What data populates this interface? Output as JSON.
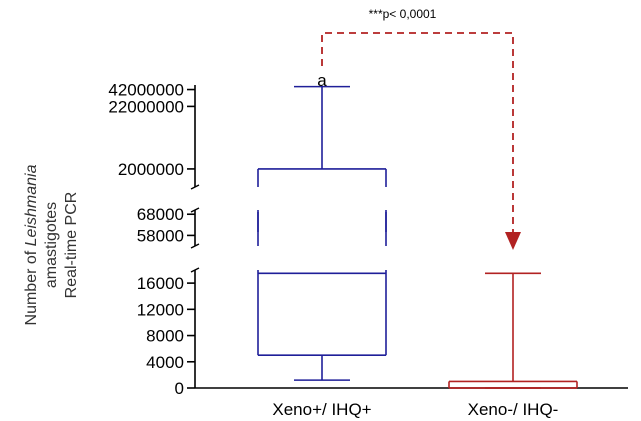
{
  "chart_data": {
    "type": "boxplot",
    "title": "",
    "ylabel_lines": [
      {
        "prefix": "Number of ",
        "italic": "Leishmania"
      },
      {
        "prefix": "amastigotes",
        "italic": ""
      },
      {
        "prefix": "Real-time PCR",
        "italic": ""
      }
    ],
    "xlabel": "",
    "categories": [
      "Xeno+/ IHQ+",
      "Xeno-/ IHQ-"
    ],
    "y_axis_segments": [
      {
        "range": [
          0,
          18000
        ],
        "ticks": [
          0,
          4000,
          8000,
          12000,
          16000
        ],
        "tick_labels": [
          "0",
          "4000",
          "8000",
          "12000",
          "16000"
        ]
      },
      {
        "range": [
          53000,
          70000
        ],
        "ticks": [
          58000,
          68000
        ],
        "tick_labels": [
          "58000",
          "68000"
        ]
      },
      {
        "range": [
          1000000,
          50000000
        ],
        "ticks": [
          2000000,
          22000000,
          42000000
        ],
        "tick_labels": [
          "2000000",
          "22000000",
          "42000000"
        ]
      }
    ],
    "boxes": [
      {
        "name": "Xeno+/ IHQ+",
        "color": "#1f1f99",
        "whisker_low": 1200,
        "q1": 5000,
        "median": 17500,
        "q3": 2000000,
        "whisker_high": 47000000
      },
      {
        "name": "Xeno-/ IHQ-",
        "color": "#b22222",
        "whisker_low": 0,
        "q1": 0,
        "median": 0,
        "q3": 1000,
        "whisker_high": 17500
      }
    ],
    "annotations": [
      {
        "text": "a",
        "target": "Xeno+/ IHQ+"
      },
      {
        "text": "***p< 0,0001",
        "type": "significance-bracket",
        "from": "Xeno+/ IHQ+",
        "to": "Xeno-/ IHQ-",
        "color": "#b22222"
      }
    ]
  }
}
